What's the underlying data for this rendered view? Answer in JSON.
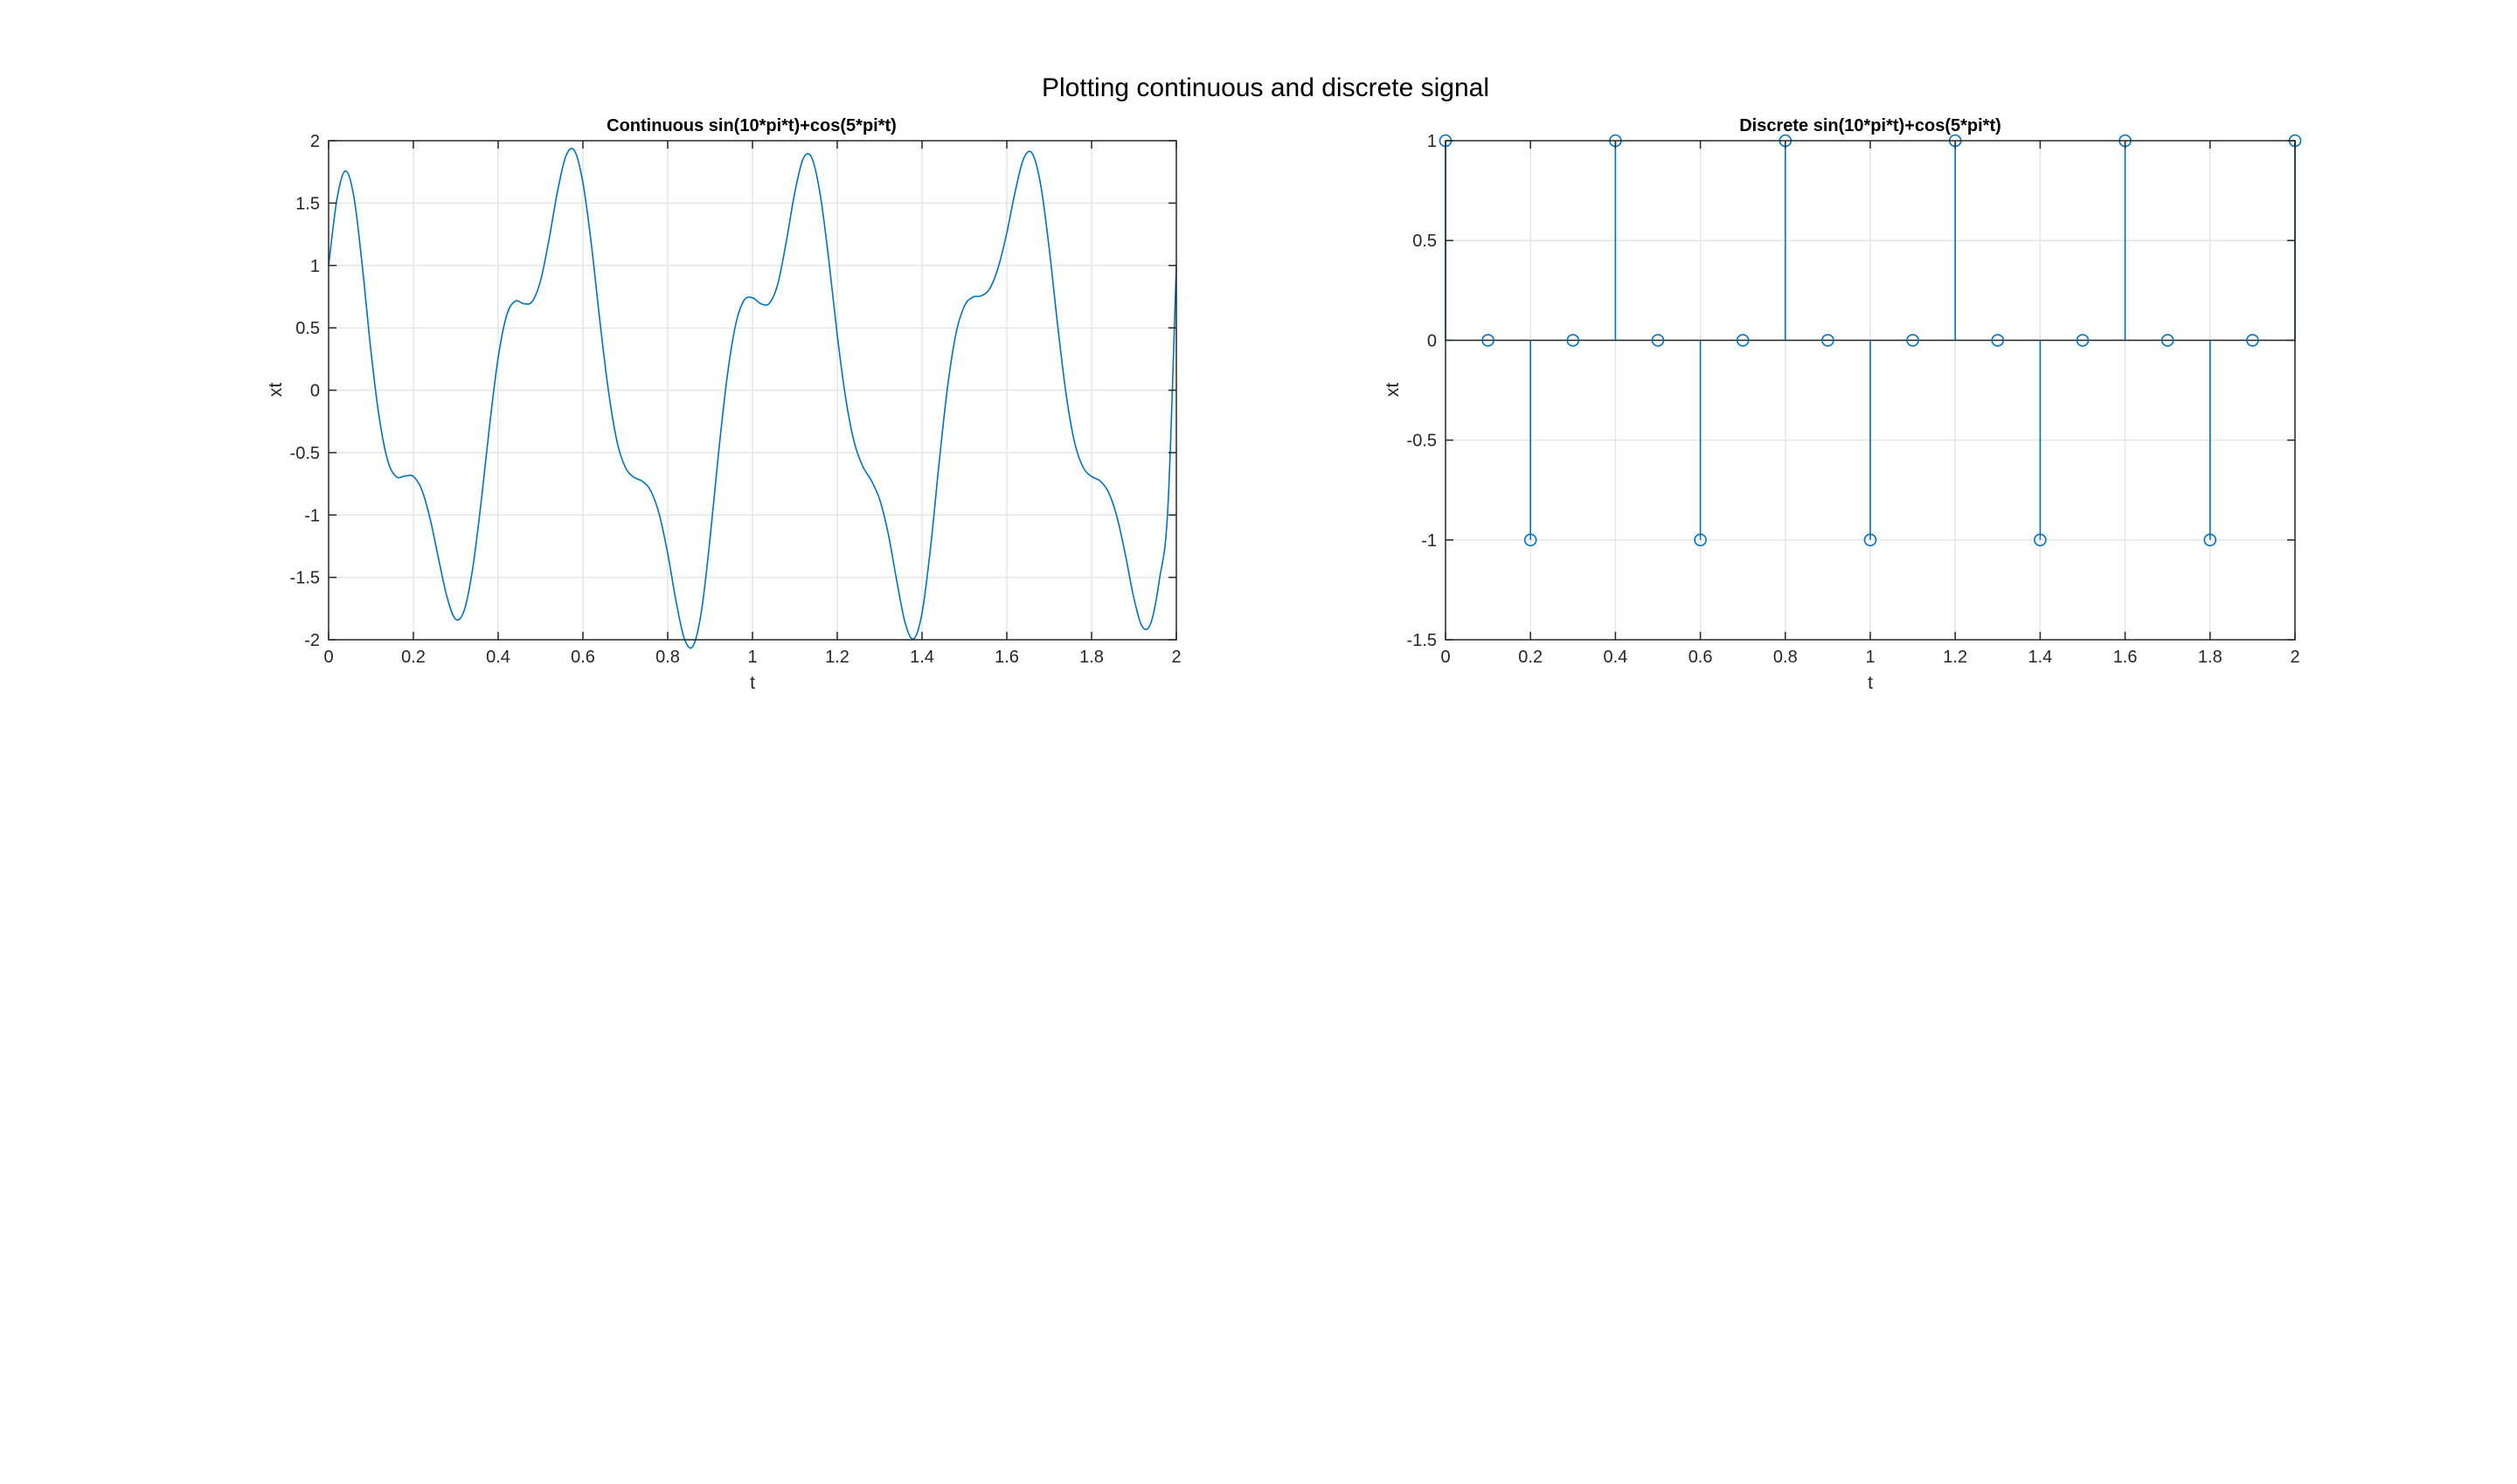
{
  "figure": {
    "suptitle": "Plotting continuous and discrete signal",
    "series_color": "#0072BD"
  },
  "chart_data": [
    {
      "type": "line",
      "title": "Continuous sin(10*pi*t)+cos(5*pi*t)",
      "xlabel": "t",
      "ylabel": "xt",
      "xlim": [
        0,
        2
      ],
      "ylim": [
        -2,
        2
      ],
      "grid": true,
      "xticks": [
        0,
        0.2,
        0.4,
        0.6,
        0.8,
        1,
        1.2,
        1.4,
        1.6,
        1.8,
        2
      ],
      "xtick_labels": [
        "0",
        "0.2",
        "0.4",
        "0.6",
        "0.8",
        "1",
        "1.2",
        "1.4",
        "1.6",
        "1.8",
        "2"
      ],
      "yticks": [
        -2,
        -1.5,
        -1,
        -0.5,
        0,
        0.5,
        1,
        1.5,
        2
      ],
      "ytick_labels": [
        "-2",
        "-1.5",
        "-1",
        "-0.5",
        "0",
        "0.5",
        "1",
        "1.5",
        "2"
      ],
      "x": [
        0,
        0.02,
        0.04,
        0.06,
        0.08,
        0.1,
        0.12,
        0.14,
        0.16,
        0.18,
        0.2,
        0.22,
        0.24,
        0.26,
        0.28,
        0.3,
        0.32,
        0.34,
        0.36,
        0.38,
        0.4,
        0.42,
        0.44,
        0.46,
        0.48,
        0.5,
        0.52,
        0.54,
        0.56,
        0.58,
        0.6,
        0.62,
        0.64,
        0.66,
        0.68,
        0.7,
        0.72,
        0.74,
        0.76,
        0.78,
        0.8,
        0.82,
        0.84,
        0.86,
        0.88,
        0.9,
        0.92,
        0.94,
        0.96,
        0.98,
        1.0,
        1.02,
        1.04,
        1.06,
        1.08,
        1.1,
        1.12,
        1.14,
        1.16,
        1.18,
        1.2,
        1.22,
        1.24,
        1.26,
        1.28,
        1.3,
        1.32,
        1.34,
        1.36,
        1.38,
        1.4,
        1.42,
        1.44,
        1.46,
        1.48,
        1.5,
        1.52,
        1.54,
        1.56,
        1.58,
        1.6,
        1.62,
        1.64,
        1.66,
        1.68,
        1.7,
        1.72,
        1.74,
        1.76,
        1.78,
        1.8,
        1.82,
        1.84,
        1.86,
        1.88,
        1.9,
        1.92,
        1.94,
        1.96,
        1.98,
        2.0
      ],
      "y": [
        1.0,
        1.538,
        1.757,
        1.543,
        0.979,
        0.309,
        -0.231,
        -0.57,
        -0.694,
        -0.688,
        -0.691,
        -0.8,
        -1.038,
        -1.361,
        -1.666,
        -1.837,
        -1.763,
        -1.427,
        -0.891,
        -0.277,
        0.26,
        0.6,
        0.714,
        0.694,
        0.71,
        0.878,
        1.207,
        1.594,
        1.879,
        1.921,
        1.663,
        1.167,
        0.555,
        0.0,
        -0.405,
        -0.618,
        -0.697,
        -0.729,
        -0.806,
        -0.994,
        -1.309,
        -1.697,
        -1.999,
        -2.049,
        -1.762,
        -1.184,
        -0.502,
        0.1,
        0.521,
        0.72,
        0.741,
        0.693,
        0.698,
        0.855,
        1.196,
        1.588,
        1.859,
        1.862,
        1.564,
        1.045,
        0.443,
        -0.066,
        -0.416,
        -0.609,
        -0.722,
        -0.875,
        -1.146,
        -1.52,
        -1.862,
        -1.994,
        -1.786,
        -1.265,
        -0.592,
        0.02,
        0.452,
        0.674,
        0.746,
        0.757,
        0.816,
        0.988,
        1.261,
        1.596,
        1.859,
        1.898,
        1.645,
        1.138,
        0.52,
        -0.034,
        -0.419,
        -0.617,
        -0.691,
        -0.727,
        -0.818,
        -1.016,
        -1.323,
        -1.669,
        -1.897,
        -1.865,
        -1.519,
        -0.943,
        1.0
      ]
    },
    {
      "type": "stem",
      "title": "Discrete sin(10*pi*t)+cos(5*pi*t)",
      "xlabel": "t",
      "ylabel": "xt",
      "xlim": [
        0,
        2
      ],
      "ylim": [
        -1.5,
        1
      ],
      "grid": true,
      "xticks": [
        0,
        0.2,
        0.4,
        0.6,
        0.8,
        1,
        1.2,
        1.4,
        1.6,
        1.8,
        2
      ],
      "xtick_labels": [
        "0",
        "0.2",
        "0.4",
        "0.6",
        "0.8",
        "1",
        "1.2",
        "1.4",
        "1.6",
        "1.8",
        "2"
      ],
      "yticks": [
        -1.5,
        -1,
        -0.5,
        0,
        0.5,
        1
      ],
      "ytick_labels": [
        "-1.5",
        "-1",
        "-0.5",
        "0",
        "0.5",
        "1"
      ],
      "x": [
        0,
        0.1,
        0.2,
        0.3,
        0.4,
        0.5,
        0.6,
        0.7,
        0.8,
        0.9,
        1.0,
        1.1,
        1.2,
        1.3,
        1.4,
        1.5,
        1.6,
        1.7,
        1.8,
        1.9,
        2.0
      ],
      "y": [
        1,
        0,
        -1,
        0,
        1,
        0,
        -1,
        0,
        1,
        0,
        -1,
        0,
        1,
        0,
        -1,
        0,
        1,
        0,
        -1,
        0,
        1
      ]
    }
  ]
}
